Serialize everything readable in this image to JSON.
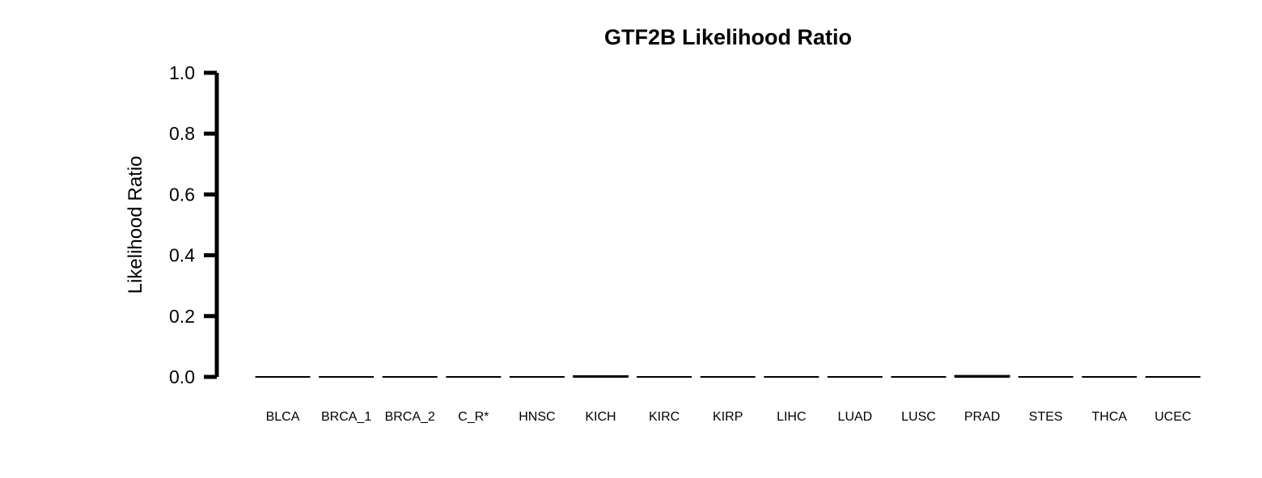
{
  "chart_data": {
    "type": "bar",
    "title": "GTF2B Likelihood Ratio",
    "xlabel": "",
    "ylabel": "Likelihood Ratio",
    "ylim": [
      0,
      1.0
    ],
    "yticks": [
      "0.0",
      "0.2",
      "0.4",
      "0.6",
      "0.8",
      "1.0"
    ],
    "ytick_values": [
      0,
      0.2,
      0.4,
      0.6,
      0.8,
      1.0
    ],
    "categories": [
      "BLCA",
      "BRCA_1",
      "BRCA_2",
      "C_R*",
      "HNSC",
      "KICH",
      "KIRC",
      "KIRP",
      "LIHC",
      "LUAD",
      "LUSC",
      "PRAD",
      "STES",
      "THCA",
      "UCEC"
    ],
    "values": [
      0.0,
      0.0,
      0.0,
      0.0,
      0.0,
      0.004,
      0.0,
      0.0,
      0.0,
      0.0,
      0.0,
      0.005,
      0.0,
      0.0,
      0.0
    ],
    "bar_color": "#000000",
    "grid": false,
    "legend": "none"
  }
}
